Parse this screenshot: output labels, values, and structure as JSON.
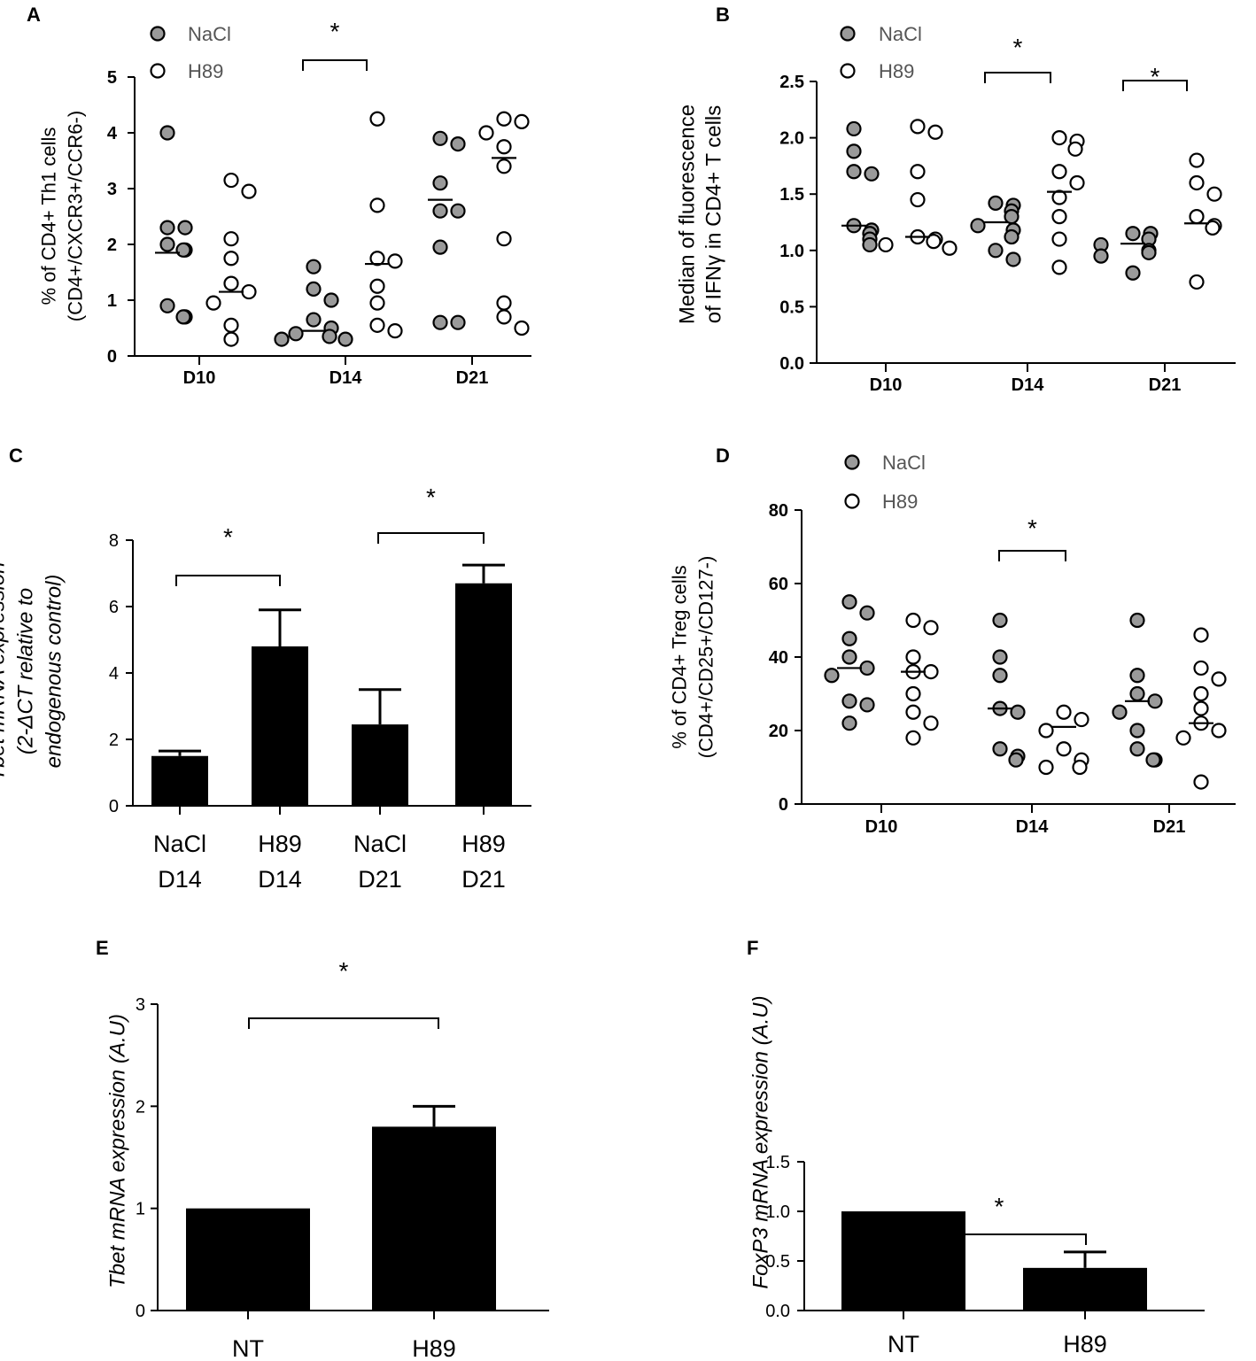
{
  "colors": {
    "nacl_fill": "#9a9a9a",
    "h89_fill": "#ffffff",
    "ink": "#000000",
    "legend_text": "#555555"
  },
  "chart_data": [
    {
      "panel": "A",
      "type": "scatter",
      "ylabel_lines": [
        "% of CD4+ Th1 cells",
        "(CD4+/CXCR3+/CCR6-)"
      ],
      "ylim": [
        0,
        5
      ],
      "yticks": [
        "0",
        "1",
        "2",
        "3",
        "4",
        "5"
      ],
      "categories": [
        "D10",
        "D14",
        "D21"
      ],
      "legend": [
        "NaCl",
        "H89"
      ],
      "series": [
        {
          "name": "NaCl",
          "medians": [
            1.85,
            0.45,
            2.8
          ],
          "points": [
            [
              4.0,
              2.3,
              2.3,
              2.0,
              1.9,
              1.9,
              0.9,
              0.7,
              0.7
            ],
            [
              1.6,
              1.2,
              1.0,
              0.65,
              0.5,
              0.4,
              0.35,
              0.3,
              0.3
            ],
            [
              3.9,
              3.8,
              3.1,
              2.6,
              2.6,
              1.95,
              0.6,
              0.6
            ]
          ]
        },
        {
          "name": "H89",
          "medians": [
            1.15,
            1.65,
            3.55
          ],
          "points": [
            [
              3.15,
              2.95,
              2.1,
              1.75,
              1.3,
              1.15,
              0.95,
              0.55,
              0.3
            ],
            [
              4.25,
              2.7,
              1.75,
              1.7,
              1.25,
              0.95,
              0.55,
              0.45
            ],
            [
              4.25,
              4.2,
              4.0,
              3.75,
              3.4,
              2.1,
              0.95,
              0.7,
              0.5
            ]
          ]
        }
      ],
      "significance": [
        {
          "category": "D14",
          "label": "*"
        }
      ]
    },
    {
      "panel": "B",
      "type": "scatter",
      "ylabel_lines": [
        "Median of fluorescence",
        "of IFNγ in CD4+ T cells"
      ],
      "ylim": [
        0,
        2.5
      ],
      "yticks": [
        "0.0",
        "0.5",
        "1.0",
        "1.5",
        "2.0",
        "2.5"
      ],
      "categories": [
        "D10",
        "D14",
        "D21"
      ],
      "legend": [
        "NaCl",
        "H89"
      ],
      "series": [
        {
          "name": "NaCl",
          "medians": [
            1.22,
            1.25,
            1.06
          ],
          "points": [
            [
              2.08,
              1.88,
              1.7,
              1.68,
              1.22,
              1.18,
              1.15,
              1.1,
              1.05
            ],
            [
              1.42,
              1.4,
              1.35,
              1.3,
              1.22,
              1.18,
              1.12,
              1.0,
              0.92
            ],
            [
              1.15,
              1.15,
              1.1,
              1.05,
              1.0,
              0.98,
              0.95,
              0.8
            ]
          ]
        },
        {
          "name": "H89",
          "medians": [
            1.12,
            1.52,
            1.24
          ],
          "points": [
            [
              2.1,
              2.05,
              1.7,
              1.45,
              1.12,
              1.1,
              1.08,
              1.05,
              1.02
            ],
            [
              2.0,
              1.97,
              1.9,
              1.7,
              1.6,
              1.47,
              1.3,
              1.1,
              0.85
            ],
            [
              1.8,
              1.6,
              1.5,
              1.3,
              1.22,
              1.2,
              0.72
            ]
          ]
        }
      ],
      "significance": [
        {
          "category": "D14",
          "label": "*"
        },
        {
          "category": "D21",
          "label": "*"
        }
      ]
    },
    {
      "panel": "C",
      "type": "bar",
      "ylabel_lines": [
        "Tbet mRNA expression",
        "(2-ΔCT relative to",
        "endogenous control)"
      ],
      "ylim": [
        0,
        8
      ],
      "yticks": [
        "0",
        "2",
        "4",
        "6",
        "8"
      ],
      "categories": [
        [
          "NaCl",
          "D14"
        ],
        [
          "H89",
          "D14"
        ],
        [
          "NaCl",
          "D21"
        ],
        [
          "H89",
          "D21"
        ]
      ],
      "values": [
        1.5,
        4.8,
        2.45,
        6.7
      ],
      "errors": [
        0.15,
        1.1,
        1.05,
        0.55
      ],
      "significance": [
        {
          "from": 0,
          "to": 1,
          "label": "*"
        },
        {
          "from": 2,
          "to": 3,
          "label": "*"
        }
      ]
    },
    {
      "panel": "D",
      "type": "scatter",
      "ylabel_lines": [
        "% of CD4+ Treg cells",
        "(CD4+/CD25+/CD127-)"
      ],
      "ylim": [
        0,
        80
      ],
      "yticks": [
        "0",
        "20",
        "40",
        "60",
        "80"
      ],
      "categories": [
        "D10",
        "D14",
        "D21"
      ],
      "legend": [
        "NaCl",
        "H89"
      ],
      "series": [
        {
          "name": "NaCl",
          "medians": [
            37,
            26,
            28
          ],
          "points": [
            [
              55,
              52,
              45,
              40,
              37,
              35,
              28,
              27,
              22
            ],
            [
              50,
              40,
              35,
              26,
              25,
              15,
              13,
              12
            ],
            [
              50,
              35,
              30,
              28,
              25,
              20,
              15,
              12,
              12
            ]
          ]
        },
        {
          "name": "H89",
          "medians": [
            36,
            21,
            22
          ],
          "points": [
            [
              50,
              48,
              40,
              36,
              36,
              30,
              25,
              22,
              18
            ],
            [
              25,
              23,
              20,
              15,
              12,
              10,
              10
            ],
            [
              46,
              37,
              34,
              30,
              26,
              22,
              20,
              18,
              6
            ]
          ]
        }
      ],
      "significance": [
        {
          "category": "D14",
          "label": "*"
        }
      ]
    },
    {
      "panel": "E",
      "type": "bar",
      "ylabel_lines": [
        "Tbet  mRNA expression (A.U)"
      ],
      "ylim": [
        0,
        3
      ],
      "yticks": [
        "0",
        "1",
        "2",
        "3"
      ],
      "categories": [
        "NT",
        "H89"
      ],
      "values": [
        1.0,
        1.8
      ],
      "errors": [
        0,
        0.2
      ],
      "significance": [
        {
          "from": 0,
          "to": 1,
          "label": "*"
        }
      ]
    },
    {
      "panel": "F",
      "type": "bar",
      "ylabel_lines": [
        "FoxP3  mRNA expression (A.U)"
      ],
      "ylim": [
        0,
        1.5
      ],
      "yticks": [
        "0.0",
        "0.5",
        "1.0",
        "1.5"
      ],
      "categories": [
        "NT",
        "H89"
      ],
      "values": [
        1.0,
        0.43
      ],
      "errors": [
        0,
        0.16
      ],
      "significance": [
        {
          "from": 0,
          "to": 1,
          "label": "*"
        }
      ]
    }
  ]
}
